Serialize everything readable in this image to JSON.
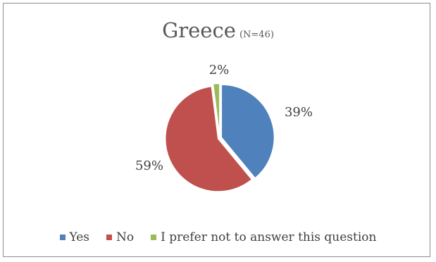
{
  "chart_data": {
    "type": "pie",
    "title": "Greece",
    "subtitle": "(N=46)",
    "categories": [
      "Yes",
      "No",
      "I prefer not to answer this question"
    ],
    "values": [
      39,
      59,
      2
    ],
    "labels": [
      "39%",
      "59%",
      "2%"
    ],
    "colors": [
      "#4f81bd",
      "#c0504d",
      "#9bbb59"
    ],
    "legend": "bottom"
  }
}
